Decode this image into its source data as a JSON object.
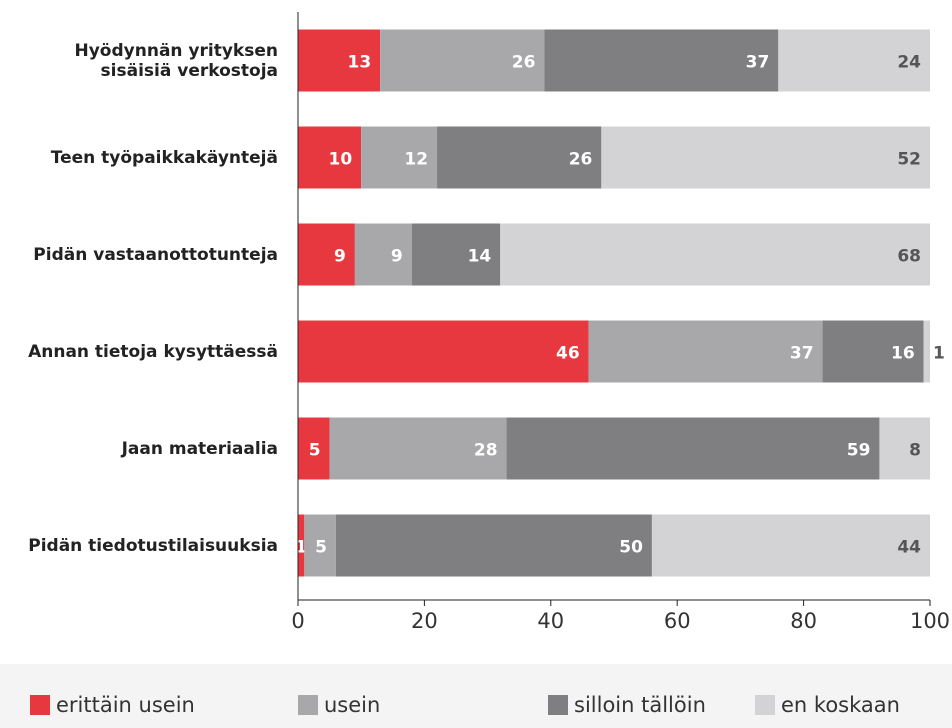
{
  "chart_data": {
    "type": "stacked-bar-horizontal",
    "categories": [
      "Hyödynnän yrityksen sisäisiä verkostoja",
      "Teen työpaikkakäyntejä",
      "Pidän vastaanottotunteja",
      "Annan tietoja kysyttäessä",
      "Jaan materiaalia",
      "Pidän tiedotustilaisuuksia"
    ],
    "series": [
      {
        "name": "erittäin usein",
        "color": "#e8383f",
        "values": [
          13,
          10,
          9,
          46,
          5,
          1
        ]
      },
      {
        "name": "usein",
        "color": "#a8a8aa",
        "values": [
          26,
          12,
          9,
          37,
          28,
          5
        ]
      },
      {
        "name": "silloin tällöin",
        "color": "#7f7f82",
        "values": [
          37,
          26,
          14,
          16,
          59,
          50
        ]
      },
      {
        "name": "en koskaan",
        "color": "#d3d3d5",
        "values": [
          24,
          52,
          68,
          1,
          8,
          44
        ]
      }
    ],
    "xlim": [
      0,
      100
    ],
    "xticks": [
      0,
      20,
      40,
      60,
      80,
      100
    ]
  }
}
